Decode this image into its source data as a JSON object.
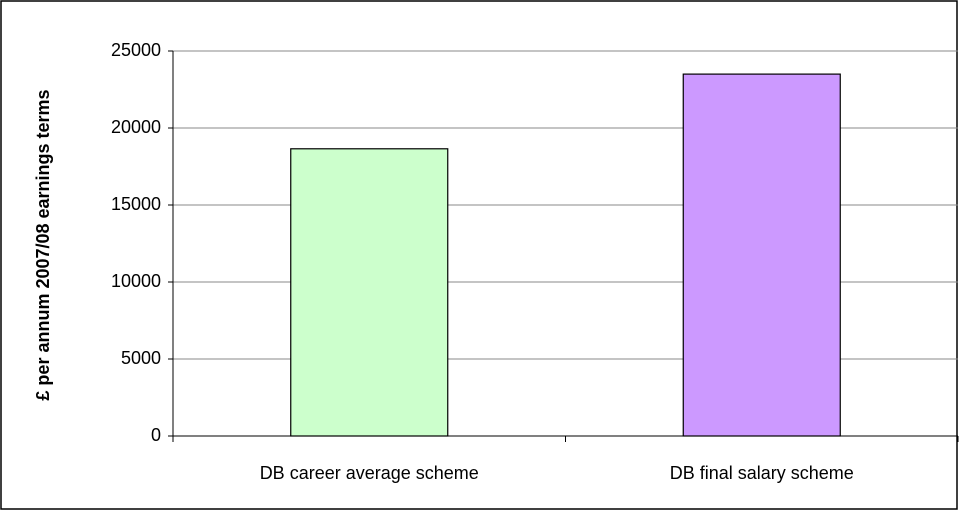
{
  "chart_data": {
    "type": "bar",
    "y_label": "£ per annum 2007/08 earnings terms",
    "categories": [
      "DB career average scheme",
      "DB final salary scheme"
    ],
    "values": [
      18650,
      23500
    ],
    "colors": [
      "#ccffcc",
      "#cc99ff"
    ],
    "ylim": [
      0,
      25000
    ],
    "yticks": [
      0,
      5000,
      10000,
      15000,
      20000,
      25000
    ],
    "grid": true
  }
}
